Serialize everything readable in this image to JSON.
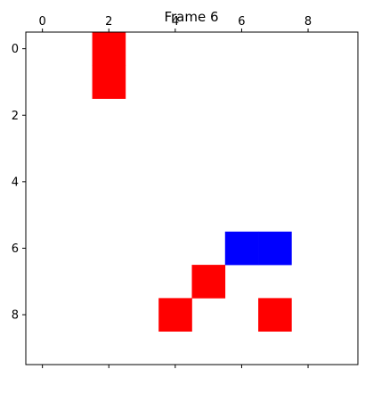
{
  "title": "Frame 6",
  "grid": {
    "rows": 10,
    "cols": 10,
    "x_ticks": [
      "0",
      "2",
      "4",
      "6",
      "8"
    ],
    "y_ticks": [
      "0",
      "2",
      "4",
      "6",
      "8"
    ],
    "background_color": "#ffffff",
    "border_color": "#000000"
  },
  "cells": [
    {
      "row": 0,
      "col": 2,
      "color": "#ff0000"
    },
    {
      "row": 1,
      "col": 2,
      "color": "#ff0000"
    },
    {
      "row": 6,
      "col": 6,
      "color": "#0000ff"
    },
    {
      "row": 6,
      "col": 7,
      "color": "#0000ff"
    },
    {
      "row": 7,
      "col": 5,
      "color": "#ff0000"
    },
    {
      "row": 8,
      "col": 4,
      "color": "#ff0000"
    },
    {
      "row": 8,
      "col": 7,
      "color": "#ff0000"
    }
  ]
}
